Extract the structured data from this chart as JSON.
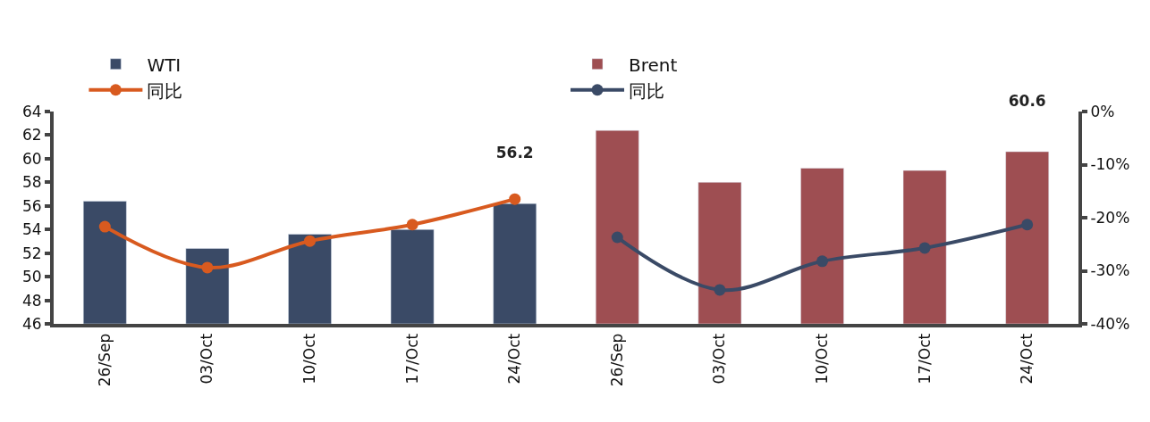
{
  "chart_data": {
    "type": "bar",
    "categories": [
      "26/Sep",
      "03/Oct",
      "10/Oct",
      "17/Oct",
      "24/Oct",
      "26/Sep",
      "03/Oct",
      "10/Oct",
      "17/Oct",
      "24/Oct"
    ],
    "series": [
      {
        "name": "WTI",
        "color": "#3a4a66",
        "values": [
          56.4,
          52.4,
          53.6,
          54.0,
          56.2,
          null,
          null,
          null,
          null,
          null
        ],
        "value_labels": [
          null,
          null,
          null,
          null,
          "56.2",
          null,
          null,
          null,
          null,
          null
        ]
      },
      {
        "name": "同比",
        "type": "line",
        "axis": "y2",
        "color": "#d85a1f",
        "values": [
          -21.7,
          -29.4,
          -24.4,
          -21.3,
          -16.5,
          null,
          null,
          null,
          null,
          null
        ]
      },
      {
        "name": "Brent",
        "color": "#9e4e52",
        "values": [
          null,
          null,
          null,
          null,
          null,
          62.4,
          58.0,
          59.2,
          59.0,
          60.6
        ],
        "value_labels": [
          null,
          null,
          null,
          null,
          null,
          null,
          null,
          null,
          null,
          "60.6"
        ]
      },
      {
        "name": "同比",
        "type": "line",
        "axis": "y2",
        "color": "#3a4a66",
        "values": [
          null,
          null,
          null,
          null,
          null,
          -23.7,
          -33.6,
          -28.2,
          -25.7,
          -21.3
        ]
      }
    ],
    "ylim": [
      46,
      64
    ],
    "yticks": [
      46,
      48,
      50,
      52,
      54,
      56,
      58,
      60,
      62,
      64
    ],
    "y2lim": [
      -40,
      0
    ],
    "y2ticks": [
      {
        "value": -40,
        "label": "-40%"
      },
      {
        "value": -30,
        "label": "-30%"
      },
      {
        "value": -20,
        "label": "-20%"
      },
      {
        "value": -10,
        "label": "-10%"
      },
      {
        "value": 0,
        "label": "0%"
      }
    ],
    "legend": "top",
    "marker": "circle",
    "line_style": "solid"
  }
}
